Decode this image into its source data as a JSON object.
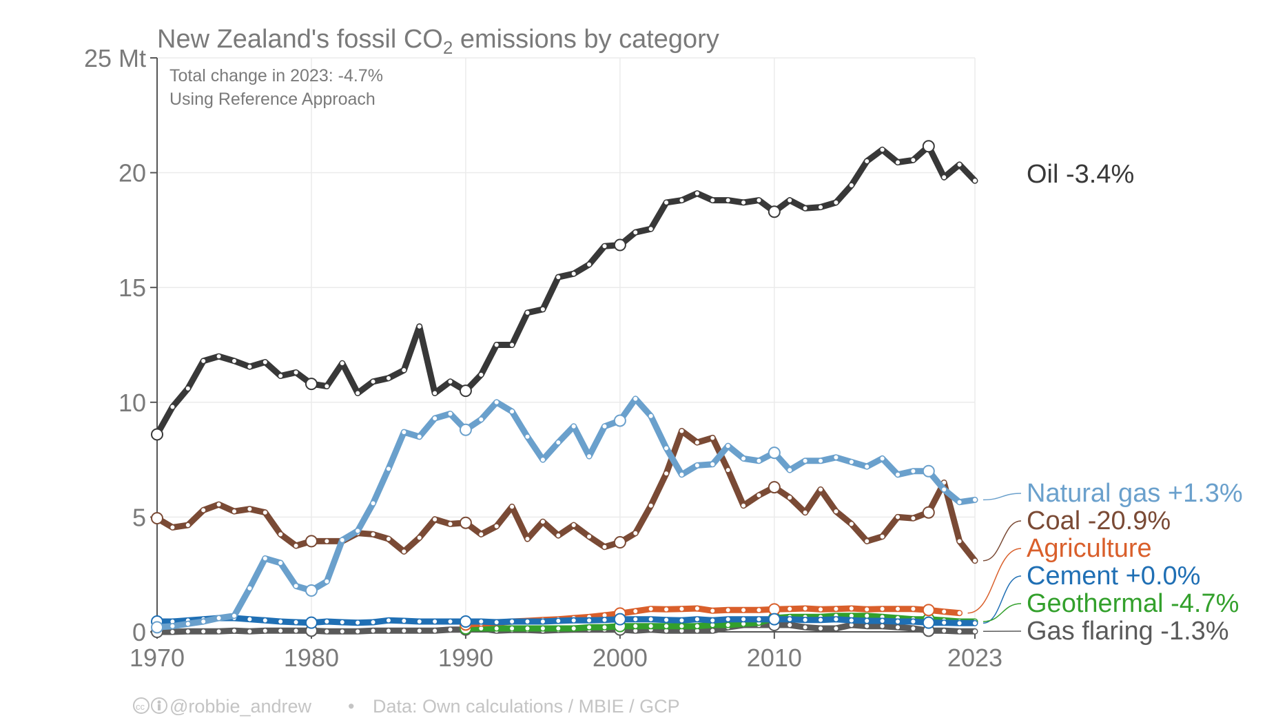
{
  "chart_data": {
    "type": "line",
    "title_main": "New Zealand's fossil CO",
    "title_sub_glyph": "2",
    "title_tail": " emissions by category",
    "subtitle_lines": [
      "Total change in 2023: -4.7%",
      "Using Reference Approach"
    ],
    "y_unit_label": "25 Mt",
    "ylim": [
      0,
      25
    ],
    "y_ticks": [
      0,
      5,
      10,
      15,
      20,
      25
    ],
    "y_tick_labels": [
      "0",
      "5",
      "10",
      "15",
      "20",
      "25 Mt"
    ],
    "xlim": [
      1970,
      2023
    ],
    "x_ticks": [
      1970,
      1980,
      1990,
      2000,
      2010,
      2023
    ],
    "x_tick_labels": [
      "1970",
      "1980",
      "1990",
      "2000",
      "2010",
      "2023"
    ],
    "grid": true,
    "credit": "@robbie_andrew",
    "credit_sep": "•",
    "source": "Data: Own calculations / MBIE / GCP",
    "series": [
      {
        "name": "Oil",
        "label": "Oil -3.4%",
        "color": "#383838",
        "start": 1970,
        "values": [
          8.6,
          9.8,
          10.6,
          11.8,
          12.0,
          11.8,
          11.55,
          11.75,
          11.15,
          11.3,
          10.8,
          10.7,
          11.7,
          10.4,
          10.9,
          11.05,
          11.4,
          13.3,
          10.4,
          10.9,
          10.5,
          11.2,
          12.5,
          12.5,
          13.9,
          14.05,
          15.45,
          15.6,
          16.0,
          16.8,
          16.85,
          17.4,
          17.55,
          18.7,
          18.8,
          19.1,
          18.8,
          18.8,
          18.7,
          18.8,
          18.3,
          18.8,
          18.45,
          18.5,
          18.7,
          19.45,
          20.5,
          21.0,
          20.45,
          20.55,
          21.15,
          19.8,
          20.35,
          19.65
        ]
      },
      {
        "name": "Natural gas",
        "label": "Natural gas +1.3%",
        "color": "#6aa0cc",
        "start": 1970,
        "values": [
          0.2,
          0.25,
          0.35,
          0.45,
          0.6,
          0.7,
          1.9,
          3.2,
          3.0,
          2.0,
          1.8,
          2.2,
          4.0,
          4.4,
          5.6,
          7.1,
          8.7,
          8.5,
          9.3,
          9.5,
          8.8,
          9.25,
          10.0,
          9.6,
          8.5,
          7.5,
          8.25,
          8.95,
          7.65,
          8.95,
          9.2,
          10.15,
          9.4,
          8.0,
          6.85,
          7.25,
          7.3,
          8.1,
          7.55,
          7.45,
          7.8,
          7.05,
          7.45,
          7.45,
          7.6,
          7.4,
          7.2,
          7.55,
          6.85,
          7.0,
          7.0,
          6.2,
          5.65,
          5.75
        ]
      },
      {
        "name": "Coal",
        "label": "Coal -20.9%",
        "color": "#7a4a35",
        "start": 1970,
        "values": [
          4.95,
          4.55,
          4.65,
          5.3,
          5.55,
          5.25,
          5.35,
          5.2,
          4.25,
          3.75,
          3.95,
          3.95,
          3.95,
          4.3,
          4.25,
          4.05,
          3.5,
          4.1,
          4.9,
          4.7,
          4.75,
          4.25,
          4.6,
          5.45,
          4.05,
          4.8,
          4.2,
          4.65,
          4.15,
          3.7,
          3.9,
          4.3,
          5.5,
          6.9,
          8.75,
          8.25,
          8.45,
          7.05,
          5.5,
          5.95,
          6.3,
          5.85,
          5.2,
          6.2,
          5.25,
          4.7,
          3.95,
          4.15,
          5.0,
          4.95,
          5.2,
          6.5,
          3.95,
          3.1
        ]
      },
      {
        "name": "Agriculture",
        "label": "Agriculture",
        "color": "#d95f2b",
        "start": 1990,
        "values": [
          0.32,
          0.36,
          0.4,
          0.45,
          0.48,
          0.52,
          0.55,
          0.6,
          0.65,
          0.72,
          0.8,
          0.9,
          1.0,
          0.98,
          1.0,
          1.02,
          0.92,
          0.95,
          0.95,
          0.95,
          0.98,
          1.0,
          1.02,
          0.98,
          1.0,
          1.02,
          0.98,
          1.0,
          1.0,
          1.0,
          0.95,
          0.88,
          0.82
        ]
      },
      {
        "name": "Cement",
        "label": "Cement +0.0%",
        "color": "#1f6fb4",
        "start": 1970,
        "values": [
          0.45,
          0.45,
          0.5,
          0.55,
          0.6,
          0.6,
          0.55,
          0.5,
          0.45,
          0.42,
          0.4,
          0.45,
          0.42,
          0.4,
          0.42,
          0.5,
          0.48,
          0.45,
          0.45,
          0.45,
          0.45,
          0.45,
          0.42,
          0.45,
          0.45,
          0.45,
          0.48,
          0.5,
          0.5,
          0.52,
          0.55,
          0.55,
          0.55,
          0.52,
          0.5,
          0.55,
          0.5,
          0.55,
          0.55,
          0.55,
          0.55,
          0.55,
          0.52,
          0.52,
          0.55,
          0.5,
          0.48,
          0.48,
          0.45,
          0.45,
          0.4,
          0.4,
          0.38,
          0.38
        ]
      },
      {
        "name": "Geothermal",
        "label": "Geothermal -4.7%",
        "color": "#33a02c",
        "start": 1990,
        "values": [
          0.15,
          0.15,
          0.15,
          0.15,
          0.15,
          0.15,
          0.15,
          0.15,
          0.2,
          0.2,
          0.25,
          0.25,
          0.25,
          0.25,
          0.25,
          0.25,
          0.3,
          0.3,
          0.35,
          0.4,
          0.6,
          0.65,
          0.65,
          0.65,
          0.7,
          0.7,
          0.7,
          0.65,
          0.6,
          0.55,
          0.55,
          0.5,
          0.45,
          0.45
        ]
      },
      {
        "name": "Gas flaring",
        "label": "Gas flaring -1.3%",
        "color": "#5a5a5a",
        "start": 1970,
        "values": [
          0.0,
          0.0,
          0.02,
          0.02,
          0.02,
          0.05,
          0.02,
          0.05,
          0.05,
          0.05,
          0.05,
          0.02,
          0.02,
          0.02,
          0.05,
          0.05,
          0.05,
          0.05,
          0.05,
          0.1,
          0.1,
          0.15,
          0.05,
          0.08,
          0.08,
          0.05,
          0.08,
          0.1,
          0.1,
          0.1,
          0.1,
          0.05,
          0.1,
          0.05,
          0.05,
          0.05,
          0.05,
          0.2,
          0.3,
          0.3,
          0.3,
          0.3,
          0.2,
          0.15,
          0.15,
          0.3,
          0.25,
          0.25,
          0.2,
          0.15,
          0.05,
          0.05,
          0.02,
          0.02
        ]
      }
    ]
  }
}
